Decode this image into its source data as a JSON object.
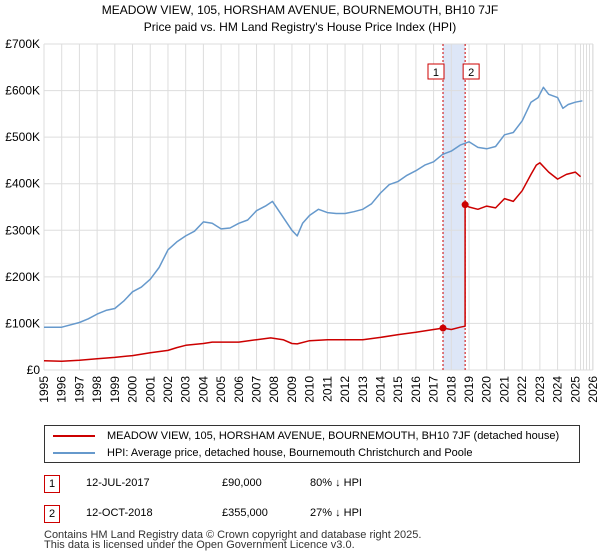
{
  "chart_data": {
    "type": "line",
    "title": "MEADOW VIEW, 105, HORSHAM AVENUE, BOURNEMOUTH, BH10 7JF",
    "subtitle": "Price paid vs. HM Land Registry's House Price Index (HPI)",
    "xlim": [
      1995,
      2026
    ],
    "ylim": [
      0,
      700000
    ],
    "x_ticks": [
      "1995",
      "1996",
      "1997",
      "1998",
      "1999",
      "2000",
      "2001",
      "2002",
      "2003",
      "2004",
      "2005",
      "2006",
      "2007",
      "2008",
      "2009",
      "2010",
      "2011",
      "2012",
      "2013",
      "2014",
      "2015",
      "2016",
      "2017",
      "2018",
      "2019",
      "2020",
      "2021",
      "2022",
      "2023",
      "2024",
      "2025",
      "2026"
    ],
    "y_ticks": [
      {
        "value": 0,
        "label": "£0"
      },
      {
        "value": 100000,
        "label": "£100K"
      },
      {
        "value": 200000,
        "label": "£200K"
      },
      {
        "value": 300000,
        "label": "£300K"
      },
      {
        "value": 400000,
        "label": "£400K"
      },
      {
        "value": 500000,
        "label": "£500K"
      },
      {
        "value": 600000,
        "label": "£600K"
      },
      {
        "value": 700000,
        "label": "£700K"
      }
    ],
    "series": [
      {
        "name": "MEADOW VIEW, 105, HORSHAM AVENUE, BOURNEMOUTH, BH10 7JF (detached house)",
        "color": "#cc0000",
        "x": [
          1995.0,
          1996.0,
          1997.0,
          1998.0,
          1999.0,
          2000.0,
          2001.0,
          2002.0,
          2002.5,
          2003.0,
          2004.0,
          2004.5,
          2005.0,
          2006.0,
          2007.0,
          2007.8,
          2008.5,
          2009.0,
          2009.3,
          2010.0,
          2011.0,
          2012.0,
          2013.0,
          2014.0,
          2015.0,
          2016.0,
          2017.0,
          2017.53,
          2018.0,
          2018.5,
          2018.78,
          2018.78,
          2019.0,
          2019.5,
          2020.0,
          2020.5,
          2021.0,
          2021.5,
          2022.0,
          2022.5,
          2022.8,
          2023.0,
          2023.5,
          2024.0,
          2024.5,
          2025.0,
          2025.3
        ],
        "values": [
          20000,
          19000,
          21000,
          24000,
          27000,
          31000,
          37000,
          42000,
          48000,
          53000,
          57000,
          60000,
          60000,
          60000,
          65000,
          69000,
          65000,
          57000,
          56000,
          63000,
          65000,
          65000,
          65000,
          70000,
          76000,
          81000,
          87000,
          90000,
          87000,
          92000,
          94000,
          355000,
          350000,
          345000,
          352000,
          348000,
          368000,
          362000,
          385000,
          420000,
          440000,
          445000,
          425000,
          410000,
          420000,
          425000,
          415000
        ]
      },
      {
        "name": "HPI: Average price, detached house, Bournemouth Christchurch and Poole",
        "color": "#6699cc",
        "x": [
          1995.0,
          1996.0,
          1997.0,
          1997.5,
          1998.0,
          1998.5,
          1999.0,
          1999.5,
          2000.0,
          2000.5,
          2001.0,
          2001.5,
          2002.0,
          2002.5,
          2003.0,
          2003.5,
          2004.0,
          2004.5,
          2005.0,
          2005.5,
          2006.0,
          2006.5,
          2007.0,
          2007.5,
          2007.9,
          2008.5,
          2009.0,
          2009.3,
          2009.6,
          2010.0,
          2010.5,
          2011.0,
          2011.5,
          2012.0,
          2012.5,
          2013.0,
          2013.5,
          2014.0,
          2014.5,
          2015.0,
          2015.5,
          2016.0,
          2016.5,
          2017.0,
          2017.5,
          2018.0,
          2018.5,
          2019.0,
          2019.5,
          2020.0,
          2020.5,
          2021.0,
          2021.5,
          2022.0,
          2022.5,
          2022.9,
          2023.2,
          2023.5,
          2024.0,
          2024.3,
          2024.6,
          2025.0,
          2025.4
        ],
        "values": [
          92000,
          92000,
          102000,
          110000,
          120000,
          128000,
          132000,
          148000,
          168000,
          178000,
          195000,
          220000,
          258000,
          275000,
          288000,
          298000,
          318000,
          315000,
          303000,
          305000,
          315000,
          322000,
          342000,
          352000,
          362000,
          328000,
          300000,
          288000,
          315000,
          332000,
          345000,
          338000,
          336000,
          336000,
          340000,
          345000,
          357000,
          380000,
          398000,
          405000,
          418000,
          428000,
          440000,
          447000,
          463000,
          470000,
          483000,
          490000,
          478000,
          475000,
          480000,
          505000,
          510000,
          535000,
          575000,
          585000,
          607000,
          592000,
          585000,
          562000,
          570000,
          575000,
          578000
        ]
      }
    ],
    "sales": [
      {
        "id": "1",
        "x": 2017.53,
        "value": 90000
      },
      {
        "id": "2",
        "x": 2018.78,
        "value": 355000
      }
    ],
    "highlight_band": [
      2017.53,
      2018.78
    ],
    "forecast_from": 2025.3
  },
  "legend": {
    "red_label": "MEADOW VIEW, 105, HORSHAM AVENUE, BOURNEMOUTH, BH10 7JF (detached house)",
    "blue_label": "HPI: Average price, detached house, Bournemouth Christchurch and Poole"
  },
  "sales_table": [
    {
      "id": "1",
      "date": "12-JUL-2017",
      "price": "£90,000",
      "hpi": "80% ↓ HPI"
    },
    {
      "id": "2",
      "date": "12-OCT-2018",
      "price": "£355,000",
      "hpi": "27% ↓ HPI"
    }
  ],
  "footer": {
    "line1": "Contains HM Land Registry data © Crown copyright and database right 2025.",
    "line2": "This data is licensed under the Open Government Licence v3.0."
  },
  "colors": {
    "red": "#cc0000",
    "blue": "#6699cc",
    "band": "#dde6f7",
    "grid": "#dddddd"
  }
}
